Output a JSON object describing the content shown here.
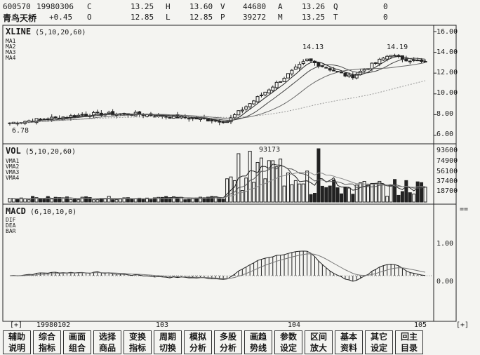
{
  "header": {
    "code": "600570",
    "date": "19980306",
    "name": "青鸟天桥",
    "change": "+0.45",
    "row1": [
      {
        "key": "C",
        "value": "13.25"
      },
      {
        "key": "H",
        "value": "13.60"
      },
      {
        "key": "V",
        "value": "44680"
      },
      {
        "key": "A",
        "value": "13.26"
      },
      {
        "key": "Q",
        "value": "0"
      }
    ],
    "row2": [
      {
        "key": "O",
        "value": "12.85"
      },
      {
        "key": "L",
        "value": "12.85"
      },
      {
        "key": "P",
        "value": "39272"
      },
      {
        "key": "M",
        "value": "13.25"
      },
      {
        "key": "T",
        "value": "0"
      }
    ]
  },
  "kline": {
    "title": "XLINE",
    "params": "(5,10,20,60)",
    "legend": [
      "MA1",
      "MA2",
      "MA3",
      "MA4"
    ],
    "yticks": [
      "16.00",
      "14.00",
      "12.00",
      "10.00",
      "8.00",
      "6.00"
    ],
    "annotations": {
      "high1": "14.13",
      "high2": "14.19",
      "low": "6.78"
    }
  },
  "vol": {
    "title": "VOL",
    "params": "(5,10,20,60)",
    "legend": [
      "VMA1",
      "VMA2",
      "VMA3",
      "VMA4"
    ],
    "yticks": [
      "93600",
      "74900",
      "56100",
      "37400",
      "18700"
    ],
    "annotation": "93173"
  },
  "macd": {
    "title": "MACD",
    "params": "(6,10,10,0)",
    "legend": [
      "DIF",
      "DEA",
      "BAR"
    ],
    "yticks": [
      "1.00",
      "0.00"
    ],
    "corner": "=="
  },
  "dates": {
    "left_marker": "[+]",
    "right_marker": "[+]",
    "labels": [
      "19980102",
      "103",
      "104",
      "105"
    ]
  },
  "toolbar": [
    [
      "辅助",
      "说明"
    ],
    [
      "综合",
      "指标"
    ],
    [
      "画面",
      "组合"
    ],
    [
      "选择",
      "商品"
    ],
    [
      "变换",
      "指标"
    ],
    [
      "周期",
      "切换"
    ],
    [
      "模拟",
      "分析"
    ],
    [
      "多股",
      "分析"
    ],
    [
      "画趋",
      "势线"
    ],
    [
      "参数",
      "设定"
    ],
    [
      "区间",
      "放大"
    ],
    [
      "基本",
      "资料"
    ],
    [
      "其它",
      "设定"
    ],
    [
      "回主",
      "目录"
    ]
  ],
  "chart_data": {
    "type": "candlestick",
    "panels": [
      "price",
      "volume",
      "macd"
    ],
    "price_range": [
      6.0,
      16.0
    ],
    "price_high": 14.19,
    "price_low": 6.78,
    "volume_max": 93173,
    "macd_range": [
      -1.0,
      1.5
    ],
    "grid": false
  }
}
